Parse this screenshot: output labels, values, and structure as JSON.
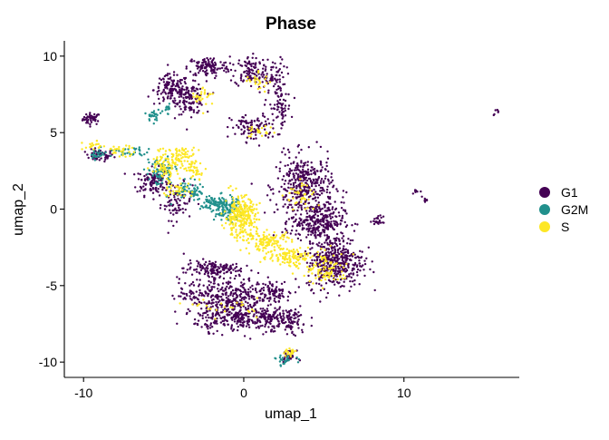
{
  "chart_data": {
    "type": "scatter",
    "title": "Phase",
    "xlabel": "umap_1",
    "ylabel": "umap_2",
    "xlim": [
      -11.2,
      17.2
    ],
    "ylim": [
      -11.0,
      11.0
    ],
    "xticks": [
      -10,
      0,
      10
    ],
    "yticks": [
      10,
      5,
      0,
      -5,
      -10
    ],
    "grid": false,
    "legend": "right",
    "series": [
      {
        "name": "G1",
        "color": "#440154",
        "clusters": [
          {
            "cx": -9.5,
            "cy": 5.9,
            "rx": 0.5,
            "ry": 0.35,
            "n": 45
          },
          {
            "cx": -9.0,
            "cy": 3.5,
            "rx": 0.8,
            "ry": 0.35,
            "n": 55
          },
          {
            "cx": -5.7,
            "cy": 1.8,
            "rx": 0.9,
            "ry": 0.8,
            "n": 110
          },
          {
            "cx": -4.2,
            "cy": 0.5,
            "rx": 0.9,
            "ry": 1.1,
            "n": 80
          },
          {
            "cx": -4.5,
            "cy": 7.8,
            "rx": 1.0,
            "ry": 0.9,
            "n": 140
          },
          {
            "cx": -3.3,
            "cy": 7.2,
            "rx": 0.8,
            "ry": 0.9,
            "n": 120
          },
          {
            "cx": -2.2,
            "cy": 9.3,
            "rx": 1.2,
            "ry": 0.6,
            "n": 120
          },
          {
            "cx": 0.3,
            "cy": 9.0,
            "rx": 0.8,
            "ry": 0.9,
            "n": 90
          },
          {
            "cx": 1.6,
            "cy": 8.6,
            "rx": 0.9,
            "ry": 1.2,
            "n": 90
          },
          {
            "cx": 0.6,
            "cy": 5.3,
            "rx": 1.3,
            "ry": 0.8,
            "n": 100
          },
          {
            "cx": 2.3,
            "cy": 6.6,
            "rx": 0.6,
            "ry": 1.0,
            "n": 60
          },
          {
            "cx": 3.8,
            "cy": 1.5,
            "rx": 1.6,
            "ry": 1.8,
            "n": 380
          },
          {
            "cx": 4.6,
            "cy": -0.8,
            "rx": 1.5,
            "ry": 1.1,
            "n": 280
          },
          {
            "cx": 5.7,
            "cy": -3.4,
            "rx": 1.6,
            "ry": 1.6,
            "n": 420
          },
          {
            "cx": -2.0,
            "cy": -3.9,
            "rx": 1.6,
            "ry": 0.5,
            "n": 140
          },
          {
            "cx": -1.2,
            "cy": -5.6,
            "rx": 2.6,
            "ry": 1.0,
            "n": 320
          },
          {
            "cx": -0.4,
            "cy": -7.1,
            "rx": 2.4,
            "ry": 0.8,
            "n": 280
          },
          {
            "cx": 2.5,
            "cy": -7.3,
            "rx": 1.4,
            "ry": 0.9,
            "n": 140
          },
          {
            "cx": 1.8,
            "cy": -5.3,
            "rx": 1.0,
            "ry": 0.6,
            "n": 70
          },
          {
            "cx": 2.8,
            "cy": -9.6,
            "rx": 0.4,
            "ry": 0.3,
            "n": 30
          },
          {
            "cx": 8.4,
            "cy": -0.8,
            "rx": 0.3,
            "ry": 0.3,
            "n": 22
          },
          {
            "cx": 10.8,
            "cy": 1.2,
            "rx": 0.2,
            "ry": 0.2,
            "n": 8
          },
          {
            "cx": 11.3,
            "cy": 0.6,
            "rx": 0.2,
            "ry": 0.2,
            "n": 8
          },
          {
            "cx": 15.8,
            "cy": 6.3,
            "rx": 0.2,
            "ry": 0.2,
            "n": 6
          }
        ]
      },
      {
        "name": "G2M",
        "color": "#21908C",
        "clusters": [
          {
            "cx": -5.6,
            "cy": 6.1,
            "rx": 0.4,
            "ry": 0.4,
            "n": 25
          },
          {
            "cx": -4.8,
            "cy": 6.6,
            "rx": 0.3,
            "ry": 0.3,
            "n": 15
          },
          {
            "cx": -9.2,
            "cy": 3.6,
            "rx": 0.6,
            "ry": 0.3,
            "n": 25
          },
          {
            "cx": -7.0,
            "cy": 3.7,
            "rx": 1.1,
            "ry": 0.3,
            "n": 35
          },
          {
            "cx": -5.2,
            "cy": 2.4,
            "rx": 0.8,
            "ry": 0.8,
            "n": 80
          },
          {
            "cx": -3.3,
            "cy": 1.2,
            "rx": 1.0,
            "ry": 0.6,
            "n": 70
          },
          {
            "cx": -1.5,
            "cy": 0.3,
            "rx": 1.1,
            "ry": 0.5,
            "n": 130
          },
          {
            "cx": -1.0,
            "cy": -0.2,
            "rx": 0.8,
            "ry": 0.5,
            "n": 60
          },
          {
            "cx": 2.6,
            "cy": -9.9,
            "rx": 0.6,
            "ry": 0.3,
            "n": 25
          }
        ]
      },
      {
        "name": "S",
        "color": "#FDE725",
        "clusters": [
          {
            "cx": -9.4,
            "cy": 4.1,
            "rx": 0.6,
            "ry": 0.3,
            "n": 20
          },
          {
            "cx": -7.6,
            "cy": 3.8,
            "rx": 0.8,
            "ry": 0.3,
            "n": 30
          },
          {
            "cx": -5.0,
            "cy": 3.0,
            "rx": 0.7,
            "ry": 0.9,
            "n": 70
          },
          {
            "cx": -3.9,
            "cy": 3.4,
            "rx": 0.8,
            "ry": 0.6,
            "n": 70
          },
          {
            "cx": -3.0,
            "cy": 2.6,
            "rx": 0.6,
            "ry": 0.5,
            "n": 40
          },
          {
            "cx": -4.2,
            "cy": 1.4,
            "rx": 0.8,
            "ry": 0.6,
            "n": 40
          },
          {
            "cx": -2.6,
            "cy": 7.4,
            "rx": 0.6,
            "ry": 0.7,
            "n": 30
          },
          {
            "cx": 0.9,
            "cy": 8.4,
            "rx": 0.7,
            "ry": 0.6,
            "n": 25
          },
          {
            "cx": 1.0,
            "cy": 5.0,
            "rx": 0.8,
            "ry": 0.4,
            "n": 20
          },
          {
            "cx": -0.2,
            "cy": -0.5,
            "rx": 0.9,
            "ry": 1.2,
            "n": 280
          },
          {
            "cx": 1.5,
            "cy": -2.1,
            "rx": 1.3,
            "ry": 0.6,
            "n": 120
          },
          {
            "cx": 3.0,
            "cy": -3.1,
            "rx": 1.4,
            "ry": 0.6,
            "n": 110
          },
          {
            "cx": 5.2,
            "cy": -3.9,
            "rx": 1.2,
            "ry": 1.0,
            "n": 90
          },
          {
            "cx": 3.6,
            "cy": 0.8,
            "rx": 0.9,
            "ry": 1.0,
            "n": 40
          },
          {
            "cx": 2.9,
            "cy": -9.4,
            "rx": 0.4,
            "ry": 0.2,
            "n": 25
          },
          {
            "cx": -1.0,
            "cy": -6.4,
            "rx": 1.8,
            "ry": 0.5,
            "n": 25
          }
        ]
      }
    ]
  }
}
